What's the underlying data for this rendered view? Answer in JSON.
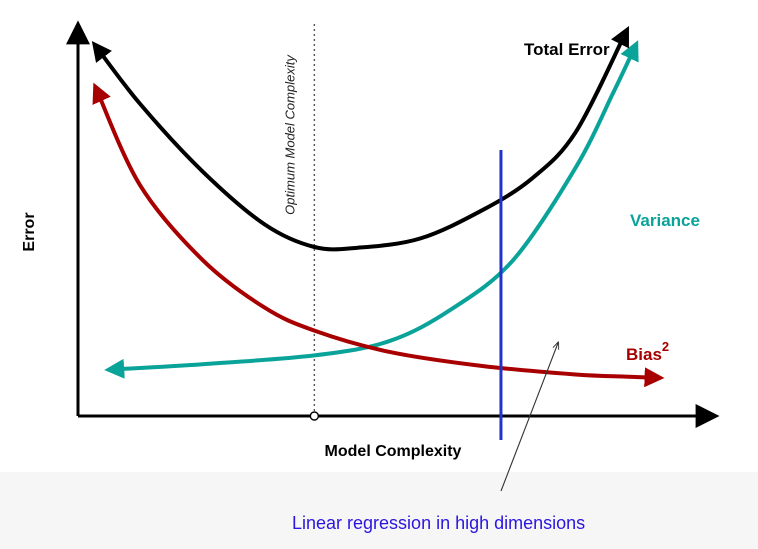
{
  "chart_data": {
    "type": "line",
    "title": "",
    "xlabel": "Model Complexity",
    "ylabel": "Error",
    "xlim": [
      0,
      10
    ],
    "ylim": [
      0,
      10
    ],
    "grid": false,
    "series": [
      {
        "name": "Total Error",
        "color": "#000000",
        "points": [
          [
            0.3,
            10.3
          ],
          [
            1.0,
            8.7
          ],
          [
            2.0,
            6.8
          ],
          [
            3.0,
            5.3
          ],
          [
            3.8,
            4.66
          ],
          [
            4.5,
            4.64
          ],
          [
            5.5,
            4.9
          ],
          [
            6.5,
            5.7
          ],
          [
            7.3,
            6.6
          ],
          [
            8.0,
            7.9
          ],
          [
            8.8,
            10.7
          ]
        ]
      },
      {
        "name": "Variance",
        "color": "#0aa39a",
        "points": [
          [
            0.55,
            1.2
          ],
          [
            2.0,
            1.35
          ],
          [
            3.8,
            1.6
          ],
          [
            5.0,
            2.0
          ],
          [
            6.0,
            2.9
          ],
          [
            7.0,
            4.3
          ],
          [
            8.0,
            6.9
          ],
          [
            8.6,
            9.0
          ],
          [
            8.95,
            10.3
          ]
        ]
      },
      {
        "name": "Bias",
        "color": "#a80000",
        "points": [
          [
            0.3,
            9.1
          ],
          [
            1.0,
            6.4
          ],
          [
            2.0,
            4.3
          ],
          [
            3.0,
            2.95
          ],
          [
            3.8,
            2.3
          ],
          [
            5.0,
            1.7
          ],
          [
            6.5,
            1.3
          ],
          [
            8.0,
            1.06
          ],
          [
            8.8,
            1.0
          ],
          [
            9.3,
            0.97
          ]
        ]
      }
    ],
    "annotations": {
      "total_label": "Total Error",
      "variance_label": "Variance",
      "bias_label": "Bias",
      "bias_superscript": "2",
      "optimum_label": "Optimum Model Complexity",
      "optimum_x": 3.8,
      "highlight_x": 6.8,
      "highlight_color": "#2233cc",
      "callout_text": "Linear regression in high dimensions",
      "callout_color": "#2b16e0"
    }
  }
}
